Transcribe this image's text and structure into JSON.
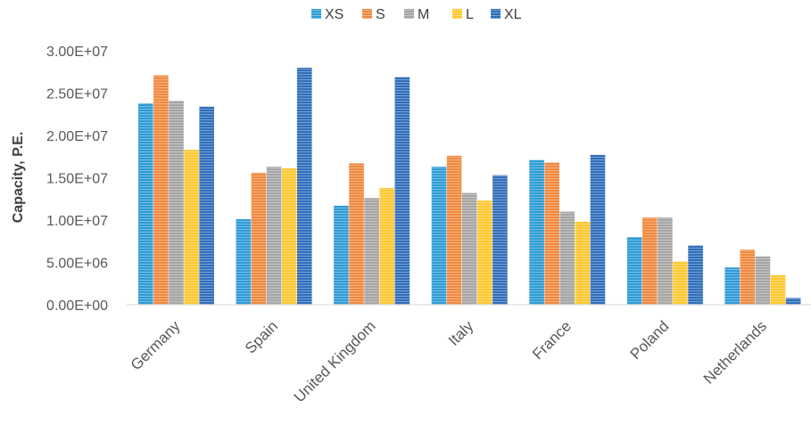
{
  "chart_data": {
    "type": "bar",
    "title": "",
    "xlabel": "",
    "ylabel": "Capacity, P.E.",
    "ylim": [
      0,
      30000000
    ],
    "yticks": [
      0,
      5000000,
      10000000,
      15000000,
      20000000,
      25000000,
      30000000
    ],
    "ytick_labels": [
      "0.00E+00",
      "5.00E+06",
      "1.00E+07",
      "1.50E+07",
      "2.00E+07",
      "2.50E+07",
      "3.00E+07"
    ],
    "categories": [
      "Germany",
      "Spain",
      "United Kingdom",
      "Italy",
      "France",
      "Poland",
      "Netherlands"
    ],
    "legend_position": "top",
    "grid": false,
    "series": [
      {
        "name": "XS",
        "color": "#2E9BD6",
        "values": [
          23800000,
          10100000,
          11700000,
          16300000,
          17100000,
          8000000,
          4400000
        ]
      },
      {
        "name": "S",
        "color": "#F0893E",
        "values": [
          27100000,
          15600000,
          16700000,
          17600000,
          16800000,
          10300000,
          6500000
        ]
      },
      {
        "name": "M",
        "color": "#A5A5A5",
        "values": [
          24100000,
          16300000,
          12600000,
          13200000,
          11000000,
          10300000,
          5700000
        ]
      },
      {
        "name": "L",
        "color": "#FDC72F",
        "values": [
          18300000,
          16100000,
          13800000,
          12300000,
          9800000,
          5100000,
          3500000
        ]
      },
      {
        "name": "XL",
        "color": "#2F6EBA",
        "values": [
          23400000,
          28000000,
          26900000,
          15300000,
          17700000,
          7000000,
          800000
        ]
      }
    ]
  }
}
